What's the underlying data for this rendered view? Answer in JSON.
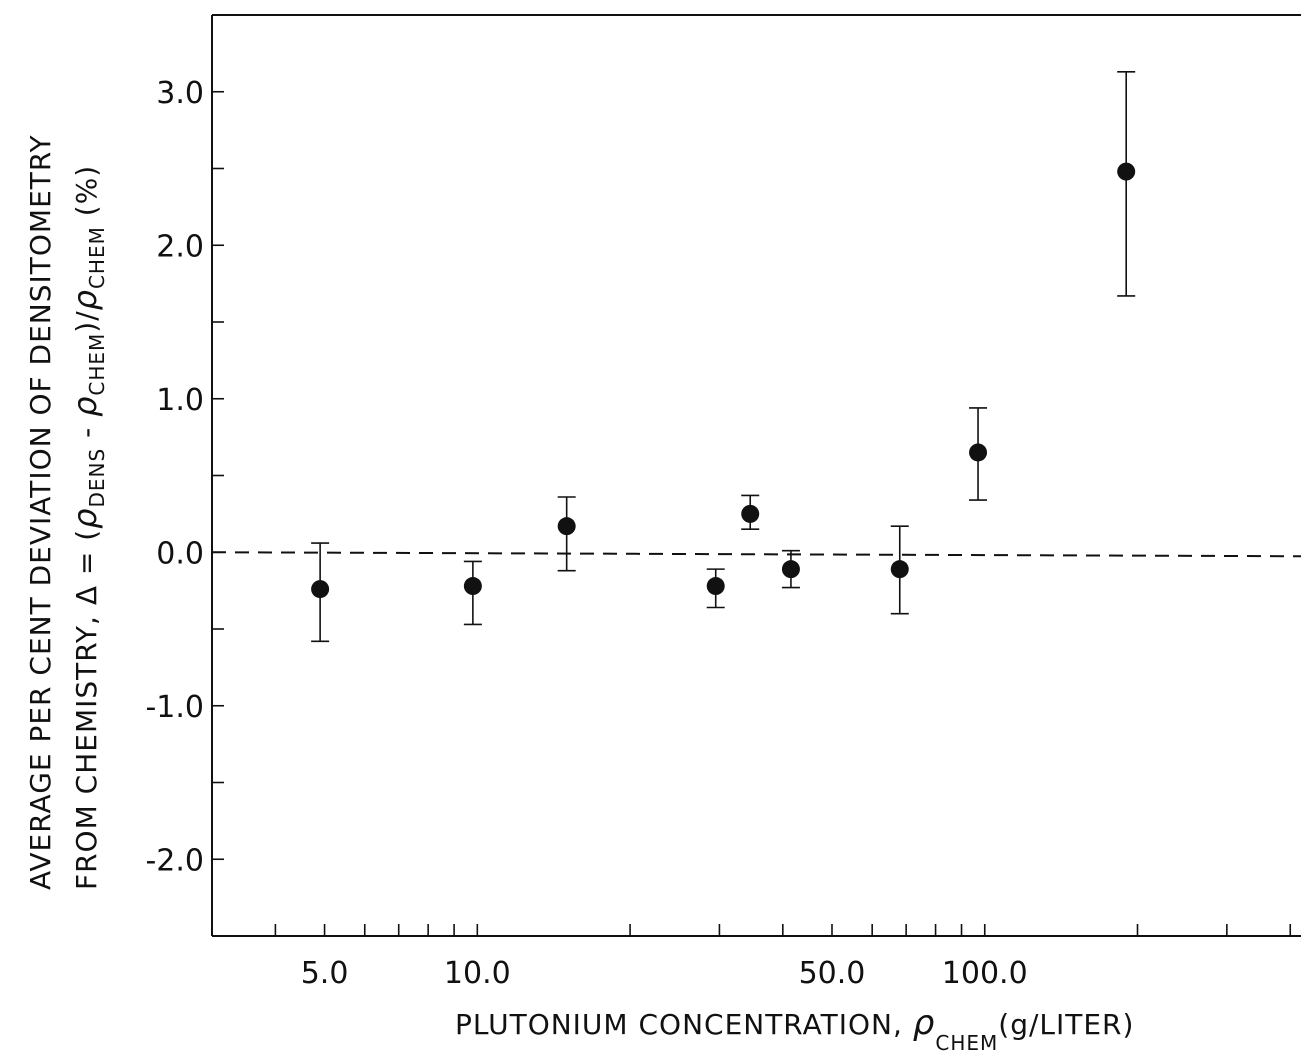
{
  "chart_data": {
    "type": "scatter",
    "x_scale": "log",
    "xlim": [
      3.0,
      420.0
    ],
    "ylim": [
      -2.5,
      3.5
    ],
    "grid": false,
    "xlabel": {
      "text": "PLUTONIUM CONCENTRATION, ",
      "symbol": "ρ",
      "subscript": "CHEM",
      "unit": "(g/LITER)"
    },
    "ylabel": {
      "line1": "AVERAGE  PER  CENT  DEVIATION  OF  DENSITOMETRY",
      "line2_prefix": "FROM CHEMISTRY,  Δ = (",
      "rho": "ρ",
      "dens_sub": "DENS",
      "minus": " - ",
      "chem_sub": "CHEM",
      "slash": ")/",
      "chem_sub2": "CHEM",
      "percent": " (%)"
    },
    "x_tick_labels": [
      {
        "value": 5.0,
        "label": "5.0"
      },
      {
        "value": 10.0,
        "label": "10.0"
      },
      {
        "value": 50.0,
        "label": "50.0"
      },
      {
        "value": 100.0,
        "label": "100.0"
      }
    ],
    "x_minor_ticks": [
      4,
      5,
      6,
      7,
      8,
      9,
      10,
      20,
      30,
      40,
      50,
      60,
      70,
      80,
      90,
      100,
      200,
      300,
      400
    ],
    "y_tick_labels": [
      {
        "value": 3.0,
        "label": "3.0"
      },
      {
        "value": 2.0,
        "label": "2.0"
      },
      {
        "value": 1.0,
        "label": "1.0"
      },
      {
        "value": 0.0,
        "label": "0.0"
      },
      {
        "value": -1.0,
        "label": "-1.0"
      },
      {
        "value": -2.0,
        "label": "-2.0"
      }
    ],
    "y_minor_ticks": [
      -2.0,
      -1.5,
      -1.0,
      -0.5,
      0.0,
      0.5,
      1.0,
      1.5,
      2.0,
      2.5,
      3.0
    ],
    "reference_line": {
      "y": 0.0,
      "style": "dashed"
    },
    "points": [
      {
        "x": 4.9,
        "y": -0.24,
        "err_low": -0.58,
        "err_high": 0.06
      },
      {
        "x": 9.8,
        "y": -0.22,
        "err_low": -0.47,
        "err_high": -0.06
      },
      {
        "x": 15.0,
        "y": 0.17,
        "err_low": -0.12,
        "err_high": 0.36
      },
      {
        "x": 29.5,
        "y": -0.22,
        "err_low": -0.36,
        "err_high": -0.11
      },
      {
        "x": 34.5,
        "y": 0.25,
        "err_low": 0.15,
        "err_high": 0.37
      },
      {
        "x": 41.5,
        "y": -0.11,
        "err_low": -0.23,
        "err_high": 0.01
      },
      {
        "x": 68.0,
        "y": -0.11,
        "err_low": -0.4,
        "err_high": 0.17
      },
      {
        "x": 97.0,
        "y": 0.65,
        "err_low": 0.34,
        "err_high": 0.94
      },
      {
        "x": 190.0,
        "y": 2.48,
        "err_low": 1.67,
        "err_high": 3.13
      }
    ],
    "colors": {
      "ink": "#111111",
      "background": "#ffffff"
    }
  }
}
